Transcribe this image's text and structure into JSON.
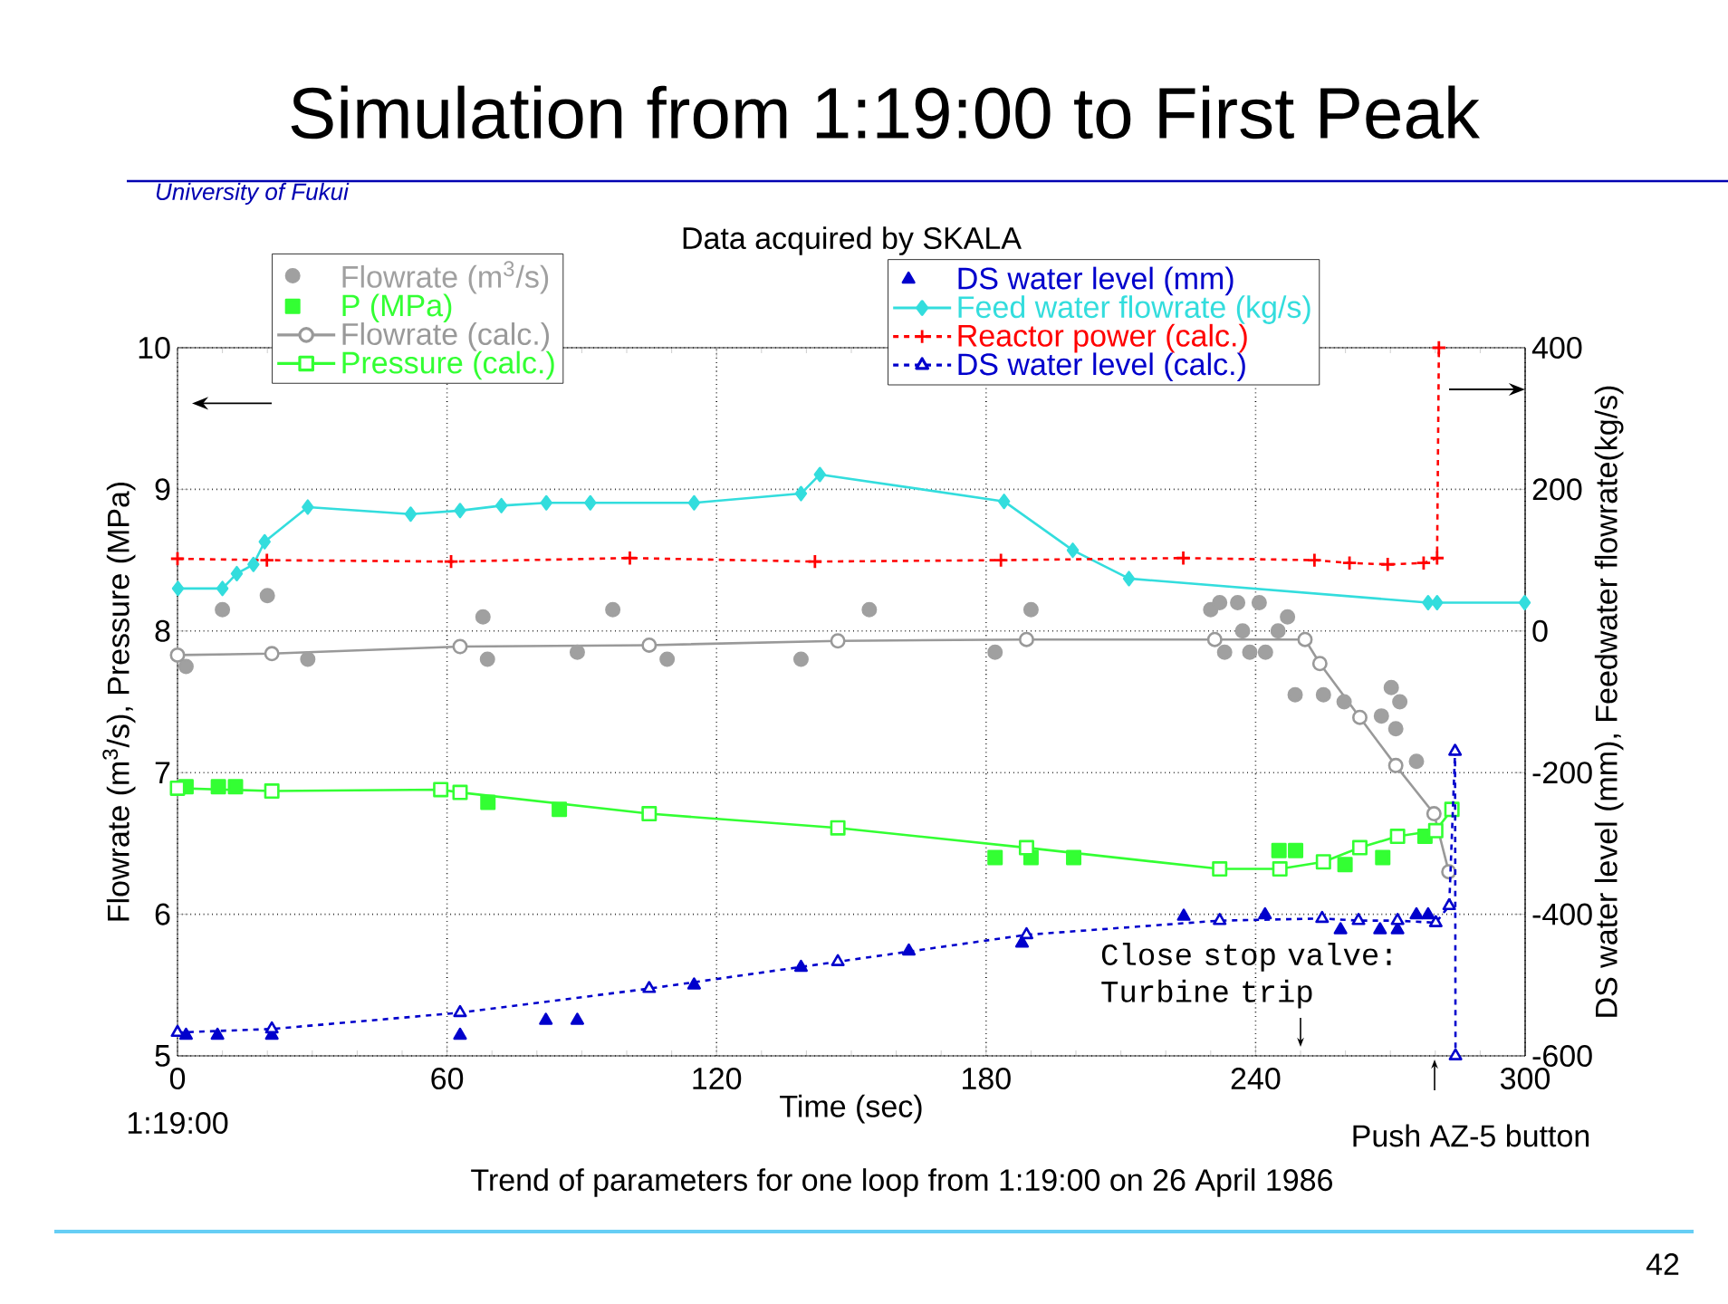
{
  "chart_data": {
    "type": "line",
    "title": "Simulation from 1:19:00 to First Peak",
    "subtitle": "Data acquired by SKALA",
    "xlabel": "Time (sec)",
    "ylabel": "Flowrate (m$^{3}$/s), Pressure (MPa)",
    "y2label": "DS water level (mm), Feedwater flowrate(kg/s)",
    "xlim": [
      0,
      300
    ],
    "xticks": [
      0,
      60,
      120,
      180,
      240,
      300
    ],
    "ylim": [
      5,
      10
    ],
    "yticks": [
      5,
      6,
      7,
      8,
      9,
      10
    ],
    "y2lim": [
      -600,
      400
    ],
    "y2ticks": [
      -600,
      -400,
      -200,
      0,
      200,
      400
    ],
    "grid": true,
    "legend": "top",
    "annotations": [
      "University of Fukui",
      "1:19:00",
      "Close stop valve: Turbine trip",
      "Push AZ-5 button",
      "Trend of parameters for one loop from 1:19:00 on 26 April 1986",
      "42"
    ],
    "series": [
      {
        "name": "Flowrate (m$^{3}$/s)",
        "type": "scatter",
        "marker": "circle",
        "color": "#a0a0a0",
        "x": [
          1.9,
          10,
          20,
          29,
          68,
          69,
          89,
          96.9,
          109,
          138.8,
          154,
          182,
          190,
          230,
          232,
          236,
          240.8,
          237.1,
          247.1,
          245,
          233.1,
          238.7,
          242.2,
          248.8,
          255.1,
          259.7,
          270.2,
          272.1,
          268,
          271.2,
          275.8
        ],
        "values": [
          7.75,
          8.15,
          8.25,
          7.8,
          8.1,
          7.8,
          7.85,
          8.15,
          7.8,
          7.8,
          8.15,
          7.85,
          8.15,
          8.15,
          8.2,
          8.2,
          8.2,
          8.0,
          8.1,
          8.0,
          7.85,
          7.85,
          7.85,
          7.55,
          7.55,
          7.5,
          7.6,
          7.5,
          7.4,
          7.31,
          7.08
        ]
      },
      {
        "name": "P (MPa)",
        "type": "scatter",
        "marker": "square",
        "color": "#33ff33",
        "x": [
          1.9,
          9.1,
          12.9,
          69.1,
          85,
          182,
          190,
          199.5,
          245.2,
          248.9,
          259.9,
          268.3,
          277.7
        ],
        "values": [
          6.9,
          6.9,
          6.9,
          6.79,
          6.74,
          6.4,
          6.4,
          6.4,
          6.45,
          6.45,
          6.35,
          6.4,
          6.55
        ]
      },
      {
        "name": "Flowrate (calc.)",
        "marker": "circle",
        "line_style": "solid",
        "color": "#999999",
        "x": [
          0,
          21,
          62.9,
          105,
          147,
          189,
          230.9,
          251,
          254.3,
          263.2,
          271.2,
          279.7,
          283
        ],
        "values": [
          7.83,
          7.84,
          7.89,
          7.9,
          7.93,
          7.94,
          7.94,
          7.94,
          7.77,
          7.39,
          7.05,
          6.71,
          6.3
        ]
      },
      {
        "name": "Pressure (calc.)",
        "marker": "square",
        "line_style": "solid",
        "color": "#33ff33",
        "x": [
          0,
          21,
          58.6,
          62.9,
          105,
          147,
          189,
          232,
          245.4,
          255.1,
          263.2,
          271.6,
          280.1,
          283.7
        ],
        "values": [
          6.89,
          6.87,
          6.88,
          6.86,
          6.71,
          6.61,
          6.47,
          6.32,
          6.32,
          6.37,
          6.47,
          6.55,
          6.59,
          6.74
        ]
      },
      {
        "name": "DS water level (mm)",
        "type": "scatter",
        "marker": "triangle",
        "axis": "y2",
        "color": "#0000cc",
        "x": [
          1.9,
          8.9,
          21,
          62.9,
          82,
          89,
          115,
          138.8,
          162.8,
          188,
          224,
          242.1,
          258.9,
          267.7,
          271.6,
          275.8,
          278.4
        ],
        "values": [
          -571,
          -571,
          -571,
          -571,
          -550,
          -550,
          -500,
          -475,
          -452,
          -441,
          -403,
          -401,
          -422,
          -422,
          -422,
          -401,
          -401
        ]
      },
      {
        "name": "Feed water flowrate (kg/s)",
        "marker": "diamond",
        "line_style": "solid",
        "axis": "y2",
        "color": "#33dddd",
        "x": [
          0.1,
          10,
          13.2,
          16.9,
          19.4,
          29,
          51.9,
          62.9,
          72.1,
          82.1,
          91.9,
          115,
          138.8,
          143,
          184,
          199.3,
          211.8,
          278.4,
          280.4,
          299.9
        ],
        "values": [
          60,
          60,
          81,
          94,
          126,
          175,
          165,
          170,
          177,
          181,
          181,
          181,
          194,
          221,
          183,
          114,
          74,
          40,
          40,
          40
        ]
      },
      {
        "name": "Reactor power (calc.)",
        "marker": "cross",
        "line_style": "dashed",
        "axis": "y2",
        "color": "#ff0000",
        "x": [
          0,
          19.9,
          60.9,
          100.7,
          141.9,
          183.3,
          223.9,
          253.1,
          260.9,
          269.4,
          277.4,
          280.4,
          280.8
        ],
        "values": [
          102,
          100,
          98,
          103,
          98,
          100,
          103,
          100,
          96,
          94,
          96,
          103,
          400
        ]
      },
      {
        "name": "DS water level (calc.)",
        "marker": "triangle",
        "line_style": "dashed",
        "axis": "y2",
        "color": "#0000cc",
        "x": [
          0,
          21,
          62.9,
          105,
          147,
          189,
          232,
          254.8,
          262.9,
          271.6,
          280.1,
          283.1,
          284.4,
          284.5
        ],
        "values": [
          -567,
          -562,
          -539,
          -505,
          -467,
          -429,
          -409,
          -406,
          -409,
          -409,
          -412,
          -388,
          -170,
          -600
        ]
      }
    ]
  }
}
